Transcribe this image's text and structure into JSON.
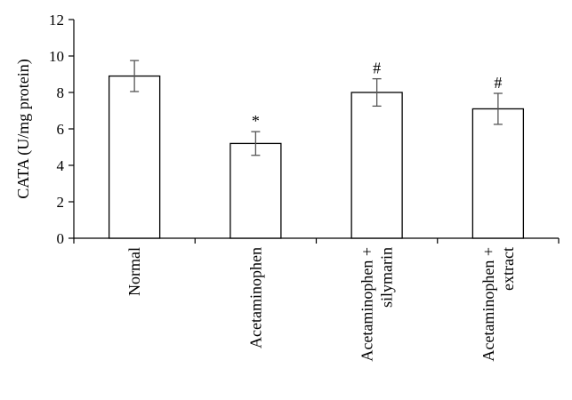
{
  "chart_data": {
    "type": "bar",
    "title": "",
    "xlabel": "",
    "ylabel": "CATA (U/mg protein)",
    "ylim": [
      0,
      12
    ],
    "yticks": [
      "0",
      "2",
      "4",
      "6",
      "8",
      "10",
      "12"
    ],
    "grid": false,
    "categories": [
      {
        "lines": [
          "Normal"
        ]
      },
      {
        "lines": [
          "Acetaminophen"
        ]
      },
      {
        "lines": [
          "Acetaminophen +",
          "silymarin"
        ]
      },
      {
        "lines": [
          "Acetaminophen +",
          "extract"
        ]
      }
    ],
    "values": [
      8.9,
      5.2,
      8.0,
      7.1
    ],
    "errors": [
      0.85,
      0.65,
      0.75,
      0.85
    ],
    "markers": [
      "",
      "*",
      "#",
      "#"
    ],
    "colors": {
      "bar_fill": "#ffffff",
      "bar_stroke": "#000000",
      "error_bar": "#555555",
      "axis": "#000000"
    }
  }
}
